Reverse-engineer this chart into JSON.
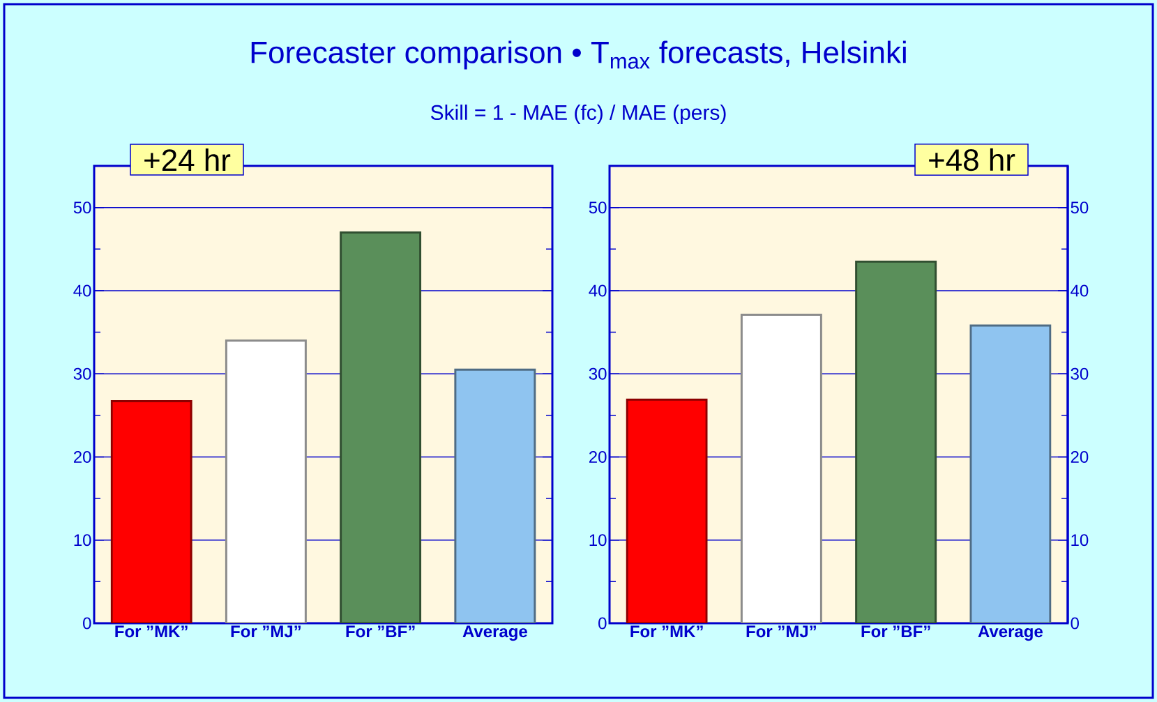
{
  "chart_data": [
    {
      "type": "bar",
      "title": "Forecaster comparison  •  T$_{max}$ forecasts, Helsinki",
      "subtitle": "Skill = 1 - MAE (fc) / MAE (pers)",
      "annotations": [
        "+24 hr"
      ],
      "categories": [
        "For ”MK”",
        "For ”MJ”",
        "For ”BF”",
        "Average"
      ],
      "values": [
        26.7,
        34.0,
        47.0,
        30.5
      ],
      "colors": [
        "#ff0000",
        "#ffffff",
        "#5a8f5a",
        "#8fc4f0"
      ],
      "ylim": [
        0,
        55
      ],
      "yticks": [
        0,
        10,
        20,
        30,
        40,
        50
      ],
      "grid": "y"
    },
    {
      "type": "bar",
      "annotations": [
        "+48 hr"
      ],
      "categories": [
        "For ”MK”",
        "For ”MJ”",
        "For ”BF”",
        "Average"
      ],
      "values": [
        26.9,
        37.1,
        43.5,
        35.8
      ],
      "colors": [
        "#ff0000",
        "#ffffff",
        "#5a8f5a",
        "#8fc4f0"
      ],
      "ylim": [
        0,
        55
      ],
      "yticks": [
        0,
        10,
        20,
        30,
        40,
        50
      ],
      "y2lim": [
        0,
        55
      ],
      "y2ticks": [
        0,
        10,
        20,
        30,
        40,
        50
      ],
      "grid": "y"
    }
  ]
}
